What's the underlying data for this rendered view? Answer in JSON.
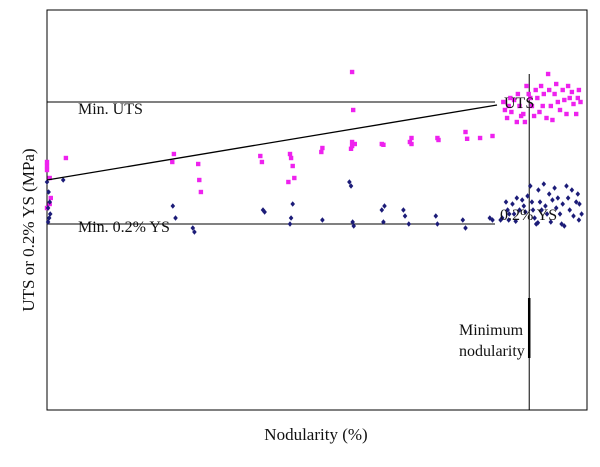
{
  "chart_data": {
    "type": "scatter",
    "xlabel": "Nodularity (%)",
    "ylabel": "UTS or 0.2% YS (MPa)",
    "xlim": [
      0,
      100
    ],
    "ylim": [
      0,
      100
    ],
    "grid": false,
    "colors": {
      "uts": "#ee22ee",
      "ys": "#1c1c78",
      "axis": "#000000"
    },
    "annotations": {
      "min_uts": "Min. UTS",
      "min_ys": "Min. 0.2% YS",
      "uts_curve": "UTS",
      "ys_curve": "0.2% YS",
      "min_nodularity": [
        "Minimum",
        "nodularity"
      ]
    },
    "reference_lines": {
      "min_uts_y": 77,
      "min_ys_y": 46.5,
      "min_nodularity_x": 89.3
    },
    "trend_line": [
      [
        0,
        57.5
      ],
      [
        100,
        80
      ]
    ],
    "series": [
      {
        "name": "UTS",
        "marker": "square",
        "points": [
          [
            0,
            62
          ],
          [
            0,
            61
          ],
          [
            0,
            60
          ],
          [
            0.5,
            58
          ],
          [
            0.7,
            53
          ],
          [
            0.5,
            51.5
          ],
          [
            0,
            50.5
          ],
          [
            3.5,
            63
          ],
          [
            23.5,
            64
          ],
          [
            23.2,
            62
          ],
          [
            28,
            61.5
          ],
          [
            28.2,
            57.5
          ],
          [
            28.5,
            54.5
          ],
          [
            39.5,
            63.5
          ],
          [
            39.8,
            62
          ],
          [
            45,
            64
          ],
          [
            45.2,
            63
          ],
          [
            45.5,
            61
          ],
          [
            45.8,
            58
          ],
          [
            44.7,
            57
          ],
          [
            50.8,
            64.5
          ],
          [
            51,
            65.5
          ],
          [
            56.3,
            65.3
          ],
          [
            56.5,
            66
          ],
          [
            56.5,
            67
          ],
          [
            56.5,
            84.5
          ],
          [
            56.7,
            75
          ],
          [
            57,
            66.5
          ],
          [
            62,
            66.5
          ],
          [
            62.3,
            66.3
          ],
          [
            67.2,
            67
          ],
          [
            67.5,
            68
          ],
          [
            67.5,
            66.5
          ],
          [
            72.3,
            68
          ],
          [
            72.5,
            67.5
          ],
          [
            77.5,
            69.5
          ],
          [
            77.8,
            67.8
          ],
          [
            80.2,
            68
          ],
          [
            82.5,
            68.5
          ],
          [
            84.5,
            77
          ],
          [
            84.8,
            75
          ],
          [
            85.2,
            73
          ],
          [
            85.5,
            76
          ],
          [
            85.8,
            78
          ],
          [
            86,
            74.5
          ],
          [
            86.5,
            77.5
          ],
          [
            87,
            72
          ],
          [
            87.2,
            79
          ],
          [
            87.5,
            76
          ],
          [
            87.8,
            73.5
          ],
          [
            88.2,
            74
          ],
          [
            88.5,
            72
          ],
          [
            88.8,
            81
          ],
          [
            89.2,
            79
          ],
          [
            89.5,
            78
          ],
          [
            89.8,
            76
          ],
          [
            90.2,
            73.5
          ],
          [
            90.5,
            80
          ],
          [
            90.8,
            78
          ],
          [
            91.2,
            74.5
          ],
          [
            91.5,
            81
          ],
          [
            91.8,
            76
          ],
          [
            92,
            79
          ],
          [
            92.5,
            73
          ],
          [
            92.8,
            84
          ],
          [
            93,
            80
          ],
          [
            93.3,
            76
          ],
          [
            93.6,
            72.5
          ],
          [
            94,
            79
          ],
          [
            94.3,
            81.5
          ],
          [
            94.6,
            77
          ],
          [
            95,
            75
          ],
          [
            95.5,
            80
          ],
          [
            95.8,
            77.5
          ],
          [
            96.2,
            74
          ],
          [
            96.5,
            81
          ],
          [
            96.8,
            78
          ],
          [
            97.2,
            79.5
          ],
          [
            97.5,
            76.5
          ],
          [
            98,
            74
          ],
          [
            98.3,
            78
          ],
          [
            98.5,
            80
          ],
          [
            98.8,
            77
          ]
        ]
      },
      {
        "name": "0.2% YS",
        "marker": "diamond",
        "points": [
          [
            0,
            57
          ],
          [
            0.3,
            54.5
          ],
          [
            0.5,
            52
          ],
          [
            0.2,
            50.5
          ],
          [
            0.6,
            49
          ],
          [
            0.4,
            48
          ],
          [
            0.2,
            47
          ],
          [
            3,
            57.5
          ],
          [
            23.3,
            51
          ],
          [
            23.8,
            48
          ],
          [
            27,
            45.5
          ],
          [
            27.3,
            44.5
          ],
          [
            40,
            50
          ],
          [
            40.3,
            49.5
          ],
          [
            45.5,
            51.5
          ],
          [
            45.2,
            48
          ],
          [
            45,
            46.5
          ],
          [
            51,
            47.5
          ],
          [
            56,
            57
          ],
          [
            56.3,
            56
          ],
          [
            56.6,
            47
          ],
          [
            56.8,
            46
          ],
          [
            62,
            50
          ],
          [
            62.3,
            47
          ],
          [
            62.5,
            51
          ],
          [
            66,
            50
          ],
          [
            66.3,
            48.5
          ],
          [
            67,
            46.5
          ],
          [
            72,
            48.5
          ],
          [
            72.3,
            46.5
          ],
          [
            77,
            47.5
          ],
          [
            77.5,
            45.5
          ],
          [
            82,
            48
          ],
          [
            82.5,
            47.5
          ],
          [
            84,
            47.5
          ],
          [
            84.3,
            48
          ],
          [
            85.5,
            47.5
          ],
          [
            85,
            52
          ],
          [
            85.3,
            50
          ],
          [
            85.6,
            49
          ],
          [
            86.2,
            51.5
          ],
          [
            86.5,
            49
          ],
          [
            87,
            53
          ],
          [
            87.5,
            50
          ],
          [
            88,
            52.5
          ],
          [
            88.3,
            51
          ],
          [
            88.6,
            49.5
          ],
          [
            89,
            53.5
          ],
          [
            89.5,
            56
          ],
          [
            89.8,
            52
          ],
          [
            90,
            50
          ],
          [
            90.3,
            48
          ],
          [
            90.6,
            46.5
          ],
          [
            91,
            55
          ],
          [
            91.3,
            52
          ],
          [
            91.6,
            50
          ],
          [
            92,
            56.5
          ],
          [
            92.3,
            51
          ],
          [
            92.6,
            49
          ],
          [
            93,
            54
          ],
          [
            93.3,
            47
          ],
          [
            93.6,
            52.5
          ],
          [
            94,
            55.5
          ],
          [
            94.3,
            50.5
          ],
          [
            94.6,
            53
          ],
          [
            95,
            49
          ],
          [
            95.5,
            51.5
          ],
          [
            95.8,
            46
          ],
          [
            96.2,
            56
          ],
          [
            96.5,
            53
          ],
          [
            96.8,
            50
          ],
          [
            97.2,
            55
          ],
          [
            97.5,
            48.5
          ],
          [
            98,
            52
          ],
          [
            98.3,
            54
          ],
          [
            98.6,
            51.5
          ],
          [
            99,
            49
          ],
          [
            98.5,
            47.5
          ],
          [
            95.3,
            46.5
          ],
          [
            90.9,
            46.8
          ],
          [
            86.8,
            47.2
          ]
        ]
      }
    ]
  }
}
